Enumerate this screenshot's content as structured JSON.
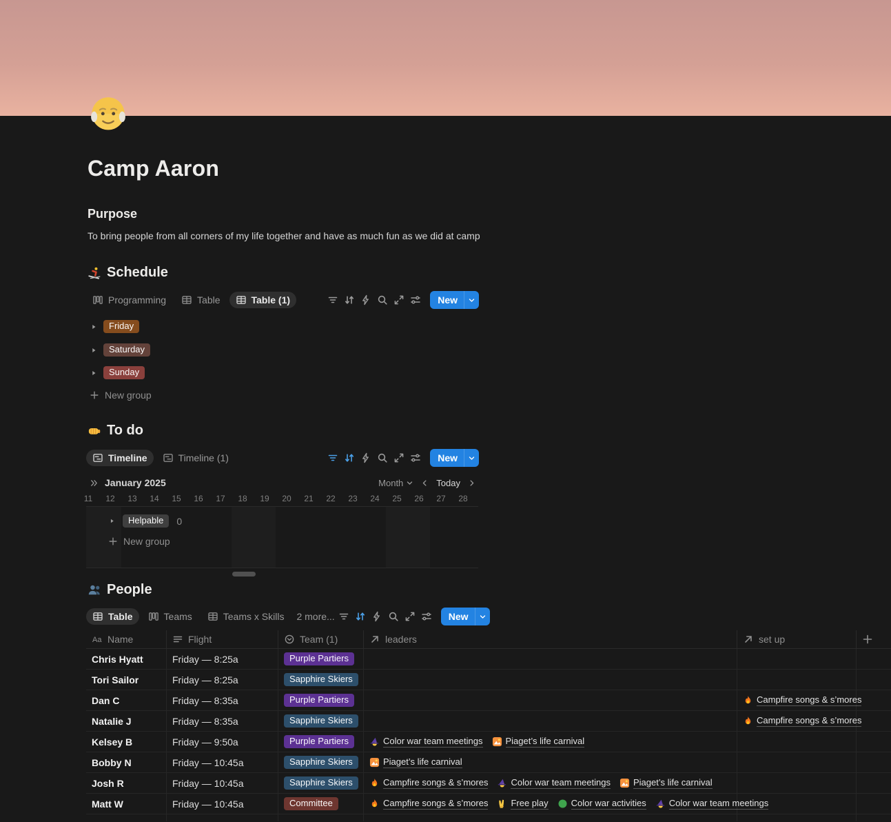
{
  "page": {
    "title": "Camp Aaron",
    "icon_emoji": "👴",
    "icon_name": "old-man-icon"
  },
  "purpose": {
    "heading": "Purpose",
    "text": "To bring people from all corners of my life together and have as much fun as we did at camp"
  },
  "new_button": {
    "label": "New"
  },
  "schedule": {
    "heading": "Schedule",
    "emoji": "⛷️",
    "icon_name": "skier-icon",
    "tabs": [
      {
        "label": "Programming",
        "icon": "board-view-icon",
        "selected": false
      },
      {
        "label": "Table",
        "icon": "table-view-icon",
        "selected": false
      },
      {
        "label": "Table (1)",
        "icon": "table-view-icon",
        "selected": true
      }
    ],
    "toolbar": {
      "filter_active": false,
      "sort_active": false
    },
    "groups": [
      {
        "label": "Friday",
        "color": "orange"
      },
      {
        "label": "Saturday",
        "color": "brown"
      },
      {
        "label": "Sunday",
        "color": "red"
      }
    ],
    "new_group_label": "New group"
  },
  "todo": {
    "heading": "To do",
    "emoji": "👊",
    "icon_name": "fist-icon",
    "tabs": [
      {
        "label": "Timeline",
        "icon": "timeline-view-icon",
        "selected": true
      },
      {
        "label": "Timeline (1)",
        "icon": "timeline-view-icon",
        "selected": false
      }
    ],
    "toolbar": {
      "filter_active": true,
      "sort_active": true
    },
    "timeline": {
      "month_label": "January 2025",
      "zoom_level": "Month",
      "today_label": "Today",
      "days": [
        11,
        12,
        13,
        14,
        15,
        16,
        17,
        18,
        19,
        20,
        21,
        22,
        23,
        24,
        25,
        26,
        27,
        28
      ],
      "weekend_days": [
        11,
        12,
        18,
        19,
        25,
        26
      ],
      "group": {
        "label": "Helpable",
        "count": "0",
        "color": "gray"
      },
      "new_group_label": "New group"
    }
  },
  "people": {
    "heading": "People",
    "emoji": "👥",
    "icon_name": "people-icon",
    "tabs": [
      {
        "label": "Table",
        "icon": "table-view-icon",
        "selected": true
      },
      {
        "label": "Teams",
        "icon": "board-view-icon",
        "selected": false
      },
      {
        "label": "Teams x Skills",
        "icon": "table-view-icon",
        "selected": false
      }
    ],
    "more_label": "2 more...",
    "toolbar": {
      "filter_active": false,
      "sort_active": true
    },
    "table": {
      "columns": [
        {
          "label": "Name",
          "icon": "text-aa-icon"
        },
        {
          "label": "Flight",
          "icon": "text-lines-icon"
        },
        {
          "label": "Team (1)",
          "icon": "select-icon"
        },
        {
          "label": "leaders",
          "icon": "relation-icon"
        },
        {
          "label": "set up",
          "icon": "relation-icon"
        }
      ],
      "rows": [
        {
          "name": "Chris Hyatt",
          "flight": "Friday — 8:25a",
          "team": {
            "label": "Purple Partiers",
            "color": "purple"
          },
          "leaders": [],
          "set_up": []
        },
        {
          "name": "Tori Sailor",
          "flight": "Friday — 8:25a",
          "team": {
            "label": "Sapphire Skiers",
            "color": "blue"
          },
          "leaders": [],
          "set_up": []
        },
        {
          "name": "Dan C",
          "flight": "Friday — 8:35a",
          "team": {
            "label": "Purple Partiers",
            "color": "purple"
          },
          "leaders": [],
          "set_up": [
            {
              "icon": "fire-icon",
              "label": "Campfire songs & s’mores"
            }
          ]
        },
        {
          "name": "Natalie J",
          "flight": "Friday — 8:35a",
          "team": {
            "label": "Sapphire Skiers",
            "color": "blue"
          },
          "leaders": [],
          "set_up": [
            {
              "icon": "fire-icon",
              "label": "Campfire songs & s’mores"
            }
          ]
        },
        {
          "name": "Kelsey B",
          "flight": "Friday — 9:50a",
          "team": {
            "label": "Purple Partiers",
            "color": "purple"
          },
          "leaders": [
            {
              "icon": "mage-icon",
              "label": "Color war team meetings"
            },
            {
              "icon": "picture-icon",
              "label": "Piaget’s life carnival"
            }
          ],
          "set_up": []
        },
        {
          "name": "Bobby N",
          "flight": "Friday — 10:45a",
          "team": {
            "label": "Sapphire Skiers",
            "color": "blue"
          },
          "leaders": [
            {
              "icon": "picture-icon",
              "label": "Piaget’s life carnival"
            }
          ],
          "set_up": []
        },
        {
          "name": "Josh R",
          "flight": "Friday — 10:45a",
          "team": {
            "label": "Sapphire Skiers",
            "color": "blue"
          },
          "leaders": [
            {
              "icon": "fire-icon",
              "label": "Campfire songs & s’mores"
            },
            {
              "icon": "mage-icon",
              "label": "Color war team meetings"
            },
            {
              "icon": "picture-icon",
              "label": "Piaget’s life carnival"
            }
          ],
          "set_up": []
        },
        {
          "name": "Matt W",
          "flight": "Friday — 10:45a",
          "team": {
            "label": "Committee",
            "color": "dark_red"
          },
          "leaders": [
            {
              "icon": "fire-icon",
              "label": "Campfire songs & s’mores"
            },
            {
              "icon": "victory-icon",
              "label": "Free play"
            },
            {
              "icon": "green-circle-icon",
              "label": "Color war activities"
            },
            {
              "icon": "mage-icon",
              "label": "Color war team meetings"
            }
          ],
          "set_up": []
        }
      ]
    }
  },
  "colors": {
    "accent_blue": "#2383e2",
    "icon_active_blue": "#4ba0e8",
    "tags": {
      "orange": "#854c1d",
      "brown": "#63423a",
      "red": "#8a403c",
      "dark_red": "#6e3630",
      "purple": "#5c3193",
      "blue": "#2d4f6b",
      "gray": "#3f3f3f"
    }
  }
}
